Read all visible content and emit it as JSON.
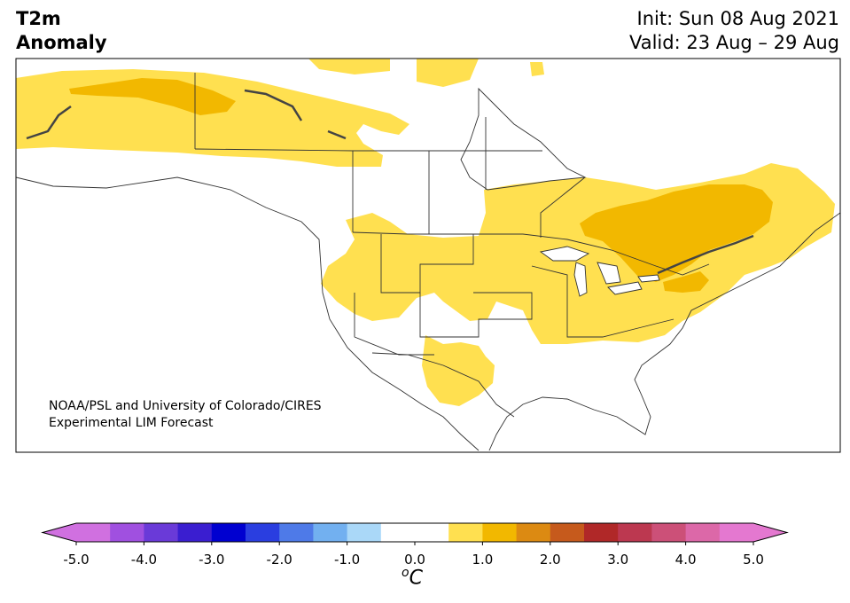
{
  "header": {
    "variable": "T2m",
    "field": "Anomaly",
    "init": "Init: Sun 08 Aug 2021",
    "valid": "Valid: 23 Aug – 29 Aug"
  },
  "credit": {
    "line1": "NOAA/PSL and University of Colorado/CIRES",
    "line2": "Experimental LIM Forecast"
  },
  "colorbar": {
    "unit_base": "C",
    "unit_sup": "o",
    "ticks": [
      "-5.0",
      "-4.0",
      "-3.0",
      "-2.0",
      "-1.0",
      "0.0",
      "1.0",
      "2.0",
      "3.0",
      "4.0",
      "5.0"
    ],
    "colors": [
      "#d070e0",
      "#a050e0",
      "#6a3ad8",
      "#3a1ed0",
      "#0000d0",
      "#2a3ee0",
      "#4e7ae8",
      "#72b0f0",
      "#aad8f8",
      "#ffffff",
      "#ffffff",
      "#ffe050",
      "#f2b800",
      "#dc8a12",
      "#c65a1c",
      "#b02828",
      "#bc3850",
      "#cc5078",
      "#dc68a8",
      "#e478d0"
    ],
    "min_extend_color": "#d070e0",
    "max_extend_color": "#e478d0"
  },
  "anomaly_colors": {
    "light": "#ffe050",
    "medium": "#f2b800"
  }
}
